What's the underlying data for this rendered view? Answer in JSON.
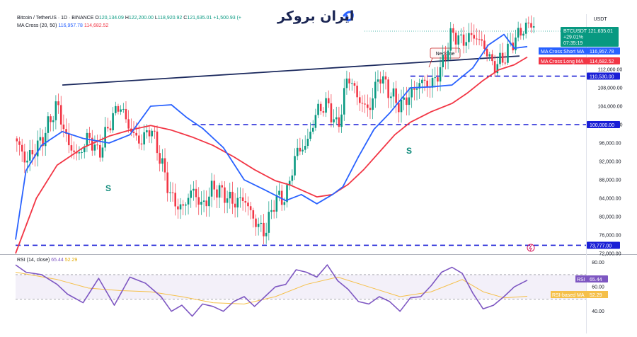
{
  "header": {
    "symbol": "Bitcoin / TetherUS · 1D · BINANCE",
    "o_label": "O",
    "o": "120,134.09",
    "h_label": "H",
    "h": "122,200.00",
    "l_label": "L",
    "l": "118,920.92",
    "c_label": "C",
    "c": "121,635.01",
    "change": "+1,500.93 (+",
    "ma_label": "MA Cross (20, 50)",
    "ma_short": "116,957.78",
    "ma_long": "114,682.52",
    "rsi_label": "RSI (14, close)",
    "rsi_value": "65.44",
    "rsi_ma": "52.29"
  },
  "logo_text": "ایران بروکر",
  "currency": "USDT",
  "price_tags": {
    "symbol": "BTCUSDT",
    "price": "121,635.01",
    "pct": "+29.01%",
    "countdown": "07:35:19",
    "short_ma_label": "MA Cross:Short MA",
    "short_ma": "116,957.78",
    "long_ma_label": "MA Cross:Long MA",
    "long_ma": "114,682.52",
    "level1": "110,530.00",
    "level2": "100,000.00",
    "level3": "73,777.00",
    "rsi_label": "RSI",
    "rsi": "65.44",
    "rsi_ma_label": "RSI-based MA",
    "rsi_ma": "52.29"
  },
  "annotations": {
    "neckline": "Neckline",
    "s1": "S",
    "s2": "S"
  },
  "colors": {
    "up": "#089981",
    "down": "#f23645",
    "short_ma": "#2962ff",
    "long_ma": "#f23645",
    "levels": "#1a1fd6",
    "neckline": "#1c2a5e",
    "rsi": "#7e57c2",
    "rsi_ma": "#f5c04a"
  },
  "chart_data": {
    "type": "candlestick",
    "y_ticks": [
      "112,000.00",
      "108,000.00",
      "104,000.00",
      "100,000.00",
      "96,000.00",
      "92,000.00",
      "88,000.00",
      "84,000.00",
      "80,000.00",
      "76,000.00",
      "72,000.00"
    ],
    "ylim": [
      72000,
      124000
    ],
    "levels": [
      110530,
      100000,
      73777
    ],
    "neckline": {
      "from": [
        0.09,
        108600
      ],
      "to": [
        0.97,
        114900
      ]
    },
    "ma_short_path": [
      [
        0.0,
        75000
      ],
      [
        0.02,
        90000
      ],
      [
        0.05,
        95500
      ],
      [
        0.09,
        98500
      ],
      [
        0.13,
        97000
      ],
      [
        0.18,
        96000
      ],
      [
        0.22,
        97800
      ],
      [
        0.26,
        104000
      ],
      [
        0.3,
        104300
      ],
      [
        0.33,
        101500
      ],
      [
        0.36,
        99200
      ],
      [
        0.4,
        95000
      ],
      [
        0.44,
        88000
      ],
      [
        0.48,
        85800
      ],
      [
        0.52,
        83500
      ],
      [
        0.55,
        84800
      ],
      [
        0.58,
        82800
      ],
      [
        0.61,
        84800
      ],
      [
        0.63,
        86500
      ],
      [
        0.66,
        93000
      ],
      [
        0.69,
        99000
      ],
      [
        0.72,
        102500
      ],
      [
        0.76,
        108000
      ],
      [
        0.8,
        108200
      ],
      [
        0.84,
        108600
      ],
      [
        0.88,
        112300
      ],
      [
        0.91,
        117300
      ],
      [
        0.94,
        119600
      ],
      [
        0.96,
        116600
      ],
      [
        0.985,
        116957
      ]
    ],
    "ma_long_path": [
      [
        0.0,
        72000
      ],
      [
        0.04,
        84000
      ],
      [
        0.08,
        91200
      ],
      [
        0.13,
        95000
      ],
      [
        0.18,
        97500
      ],
      [
        0.22,
        98800
      ],
      [
        0.26,
        99800
      ],
      [
        0.3,
        98800
      ],
      [
        0.34,
        97300
      ],
      [
        0.38,
        95500
      ],
      [
        0.42,
        93000
      ],
      [
        0.46,
        90200
      ],
      [
        0.5,
        87800
      ],
      [
        0.53,
        86800
      ],
      [
        0.56,
        85300
      ],
      [
        0.58,
        84300
      ],
      [
        0.61,
        84800
      ],
      [
        0.64,
        87000
      ],
      [
        0.67,
        90200
      ],
      [
        0.7,
        94000
      ],
      [
        0.73,
        97800
      ],
      [
        0.76,
        100500
      ],
      [
        0.8,
        102800
      ],
      [
        0.84,
        104600
      ],
      [
        0.87,
        106900
      ],
      [
        0.9,
        109600
      ],
      [
        0.93,
        111900
      ],
      [
        0.96,
        113000
      ],
      [
        0.985,
        114682
      ]
    ],
    "price_path": [
      [
        0.0,
        97000
      ],
      [
        0.02,
        92000
      ],
      [
        0.05,
        96500
      ],
      [
        0.08,
        104500
      ],
      [
        0.1,
        96000
      ],
      [
        0.12,
        93000
      ],
      [
        0.14,
        97500
      ],
      [
        0.16,
        93500
      ],
      [
        0.18,
        100000
      ],
      [
        0.2,
        104500
      ],
      [
        0.22,
        99000
      ],
      [
        0.24,
        96000
      ],
      [
        0.26,
        99500
      ],
      [
        0.28,
        92000
      ],
      [
        0.3,
        84000
      ],
      [
        0.32,
        81500
      ],
      [
        0.34,
        86000
      ],
      [
        0.36,
        82000
      ],
      [
        0.38,
        86500
      ],
      [
        0.4,
        85000
      ],
      [
        0.42,
        83000
      ],
      [
        0.44,
        84000
      ],
      [
        0.46,
        79000
      ],
      [
        0.48,
        76500
      ],
      [
        0.5,
        84000
      ],
      [
        0.52,
        84000
      ],
      [
        0.54,
        94000
      ],
      [
        0.56,
        95500
      ],
      [
        0.58,
        103000
      ],
      [
        0.6,
        104500
      ],
      [
        0.62,
        99000
      ],
      [
        0.64,
        111000
      ],
      [
        0.66,
        105500
      ],
      [
        0.68,
        103000
      ],
      [
        0.7,
        111000
      ],
      [
        0.72,
        107000
      ],
      [
        0.74,
        104000
      ],
      [
        0.76,
        106500
      ],
      [
        0.78,
        109500
      ],
      [
        0.8,
        108500
      ],
      [
        0.82,
        112500
      ],
      [
        0.84,
        120000
      ],
      [
        0.86,
        118000
      ],
      [
        0.88,
        119500
      ],
      [
        0.9,
        117500
      ],
      [
        0.92,
        112500
      ],
      [
        0.94,
        114500
      ],
      [
        0.96,
        118500
      ],
      [
        0.985,
        121635
      ]
    ],
    "rsi_ticks": [
      "80.00",
      "60.00",
      "40.00"
    ],
    "rsi_ylim": [
      30,
      85
    ],
    "rsi_band": [
      70,
      50
    ],
    "rsi_path": [
      [
        0.0,
        78
      ],
      [
        0.02,
        72
      ],
      [
        0.05,
        70
      ],
      [
        0.08,
        62
      ],
      [
        0.1,
        54
      ],
      [
        0.13,
        47
      ],
      [
        0.16,
        67
      ],
      [
        0.19,
        45
      ],
      [
        0.22,
        68
      ],
      [
        0.25,
        63
      ],
      [
        0.28,
        52
      ],
      [
        0.3,
        40
      ],
      [
        0.32,
        45
      ],
      [
        0.34,
        36
      ],
      [
        0.36,
        46
      ],
      [
        0.38,
        44
      ],
      [
        0.4,
        40
      ],
      [
        0.42,
        48
      ],
      [
        0.44,
        52
      ],
      [
        0.46,
        44
      ],
      [
        0.48,
        52
      ],
      [
        0.5,
        60
      ],
      [
        0.52,
        62
      ],
      [
        0.54,
        74
      ],
      [
        0.56,
        72
      ],
      [
        0.58,
        68
      ],
      [
        0.6,
        78
      ],
      [
        0.62,
        65
      ],
      [
        0.64,
        58
      ],
      [
        0.66,
        48
      ],
      [
        0.68,
        46
      ],
      [
        0.7,
        52
      ],
      [
        0.72,
        48
      ],
      [
        0.74,
        40
      ],
      [
        0.76,
        51
      ],
      [
        0.78,
        52
      ],
      [
        0.8,
        61
      ],
      [
        0.82,
        72
      ],
      [
        0.84,
        76
      ],
      [
        0.86,
        71
      ],
      [
        0.88,
        55
      ],
      [
        0.9,
        42
      ],
      [
        0.92,
        45
      ],
      [
        0.94,
        52
      ],
      [
        0.96,
        60
      ],
      [
        0.985,
        65.44
      ]
    ],
    "rsi_ma_path": [
      [
        0.0,
        72
      ],
      [
        0.08,
        66
      ],
      [
        0.14,
        59
      ],
      [
        0.2,
        57
      ],
      [
        0.26,
        56
      ],
      [
        0.32,
        52
      ],
      [
        0.38,
        47
      ],
      [
        0.44,
        46
      ],
      [
        0.5,
        52
      ],
      [
        0.56,
        62
      ],
      [
        0.62,
        68
      ],
      [
        0.68,
        60
      ],
      [
        0.74,
        52
      ],
      [
        0.8,
        56
      ],
      [
        0.86,
        66
      ],
      [
        0.9,
        56
      ],
      [
        0.94,
        51
      ],
      [
        0.985,
        52.29
      ]
    ]
  }
}
